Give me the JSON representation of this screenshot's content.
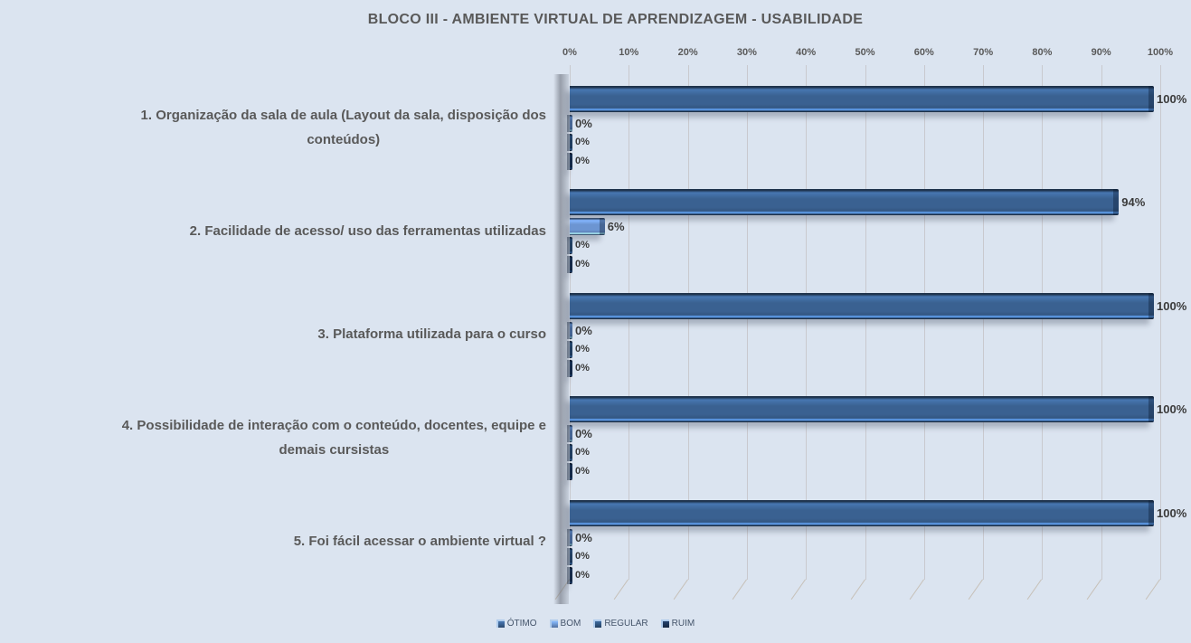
{
  "chart_data": {
    "type": "bar",
    "orientation": "horizontal",
    "style": "3d",
    "title": "BLOCO III - AMBIENTE VIRTUAL DE APRENDIZAGEM - USABILIDADE",
    "categories": [
      "1. Organização da sala de aula (Layout da sala, disposição dos\nconteúdos)",
      "2. Facilidade de acesso/ uso das ferramentas utilizadas",
      "3. Plataforma utilizada para o curso",
      "4. Possibilidade de interação com o conteúdo, docentes, equipe e\ndemais cursistas",
      "5. Foi fácil acessar o ambiente virtual ?"
    ],
    "series": [
      {
        "name": "ÓTIMO",
        "color": "#3A6191",
        "values": [
          100,
          94,
          100,
          100,
          100
        ]
      },
      {
        "name": "BOM",
        "color": "#6C95D2",
        "values": [
          0,
          6,
          0,
          0,
          0
        ]
      },
      {
        "name": "REGULAR",
        "color": "#30557F",
        "values": [
          0,
          0,
          0,
          0,
          0
        ]
      },
      {
        "name": "RUIM",
        "color": "#1C3457",
        "values": [
          0,
          0,
          0,
          0,
          0
        ]
      }
    ],
    "data_label_format": "percent",
    "x_axis": {
      "position": "top",
      "min": 0,
      "max": 100,
      "ticks": [
        "0%",
        "10%",
        "20%",
        "30%",
        "40%",
        "50%",
        "60%",
        "70%",
        "80%",
        "90%",
        "100%"
      ]
    },
    "grid": true,
    "legend": {
      "position": "bottom",
      "items": [
        "ÓTIMO",
        "BOM",
        "REGULAR",
        "RUIM"
      ]
    }
  },
  "colors": {
    "background": "#DBE4F0",
    "title_text": "#595959",
    "axis_text": "#595959",
    "category_text": "#595959",
    "data_label_text": "#3A3A3A",
    "legend_text": "#44546A",
    "gridline": "#C9C9CE",
    "floor_line": "#C7C1B9"
  }
}
